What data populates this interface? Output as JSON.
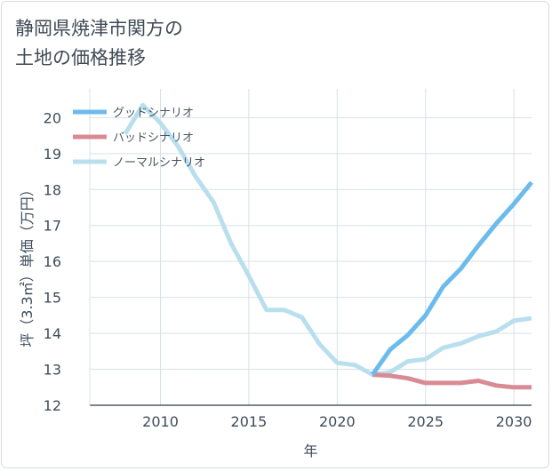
{
  "title_lines": [
    "静岡県焼津市関方の",
    "土地の価格推移"
  ],
  "chart_data": {
    "type": "line",
    "title": "静岡県焼津市関方の土地の価格推移",
    "xlabel": "年",
    "ylabel": "坪（3.3㎡）単価（万円）",
    "xlim": [
      2006,
      2031
    ],
    "ylim": [
      12,
      20.8
    ],
    "xticks": [
      2010,
      2015,
      2020,
      2025,
      2030
    ],
    "yticks": [
      12,
      13,
      14,
      15,
      16,
      17,
      18,
      19,
      20
    ],
    "grid": true,
    "legend_position": "top-left",
    "series": [
      {
        "name": "グッドシナリオ",
        "color": "#6bbbec",
        "x": [
          2022,
          2023,
          2024,
          2025,
          2026,
          2027,
          2028,
          2029,
          2030,
          2031
        ],
        "values": [
          12.85,
          13.55,
          13.95,
          14.5,
          15.3,
          15.8,
          16.45,
          17.05,
          17.6,
          18.2
        ]
      },
      {
        "name": "バッドシナリオ",
        "color": "#d98b95",
        "x": [
          2022,
          2023,
          2024,
          2025,
          2026,
          2027,
          2028,
          2029,
          2030,
          2031
        ],
        "values": [
          12.85,
          12.82,
          12.75,
          12.62,
          12.62,
          12.62,
          12.68,
          12.55,
          12.5,
          12.5
        ]
      },
      {
        "name": "ノーマルシナリオ",
        "color": "#b9dfee",
        "x": [
          2008,
          2009,
          2010,
          2011,
          2012,
          2013,
          2014,
          2015,
          2016,
          2017,
          2018,
          2019,
          2020,
          2021,
          2022,
          2023,
          2024,
          2025,
          2026,
          2027,
          2028,
          2029,
          2030,
          2031
        ],
        "values": [
          19.55,
          20.35,
          19.85,
          19.2,
          18.35,
          17.65,
          16.5,
          15.6,
          14.65,
          14.65,
          14.45,
          13.7,
          13.18,
          13.12,
          12.85,
          12.92,
          13.22,
          13.28,
          13.6,
          13.72,
          13.92,
          14.05,
          14.35,
          14.42
        ]
      }
    ]
  }
}
